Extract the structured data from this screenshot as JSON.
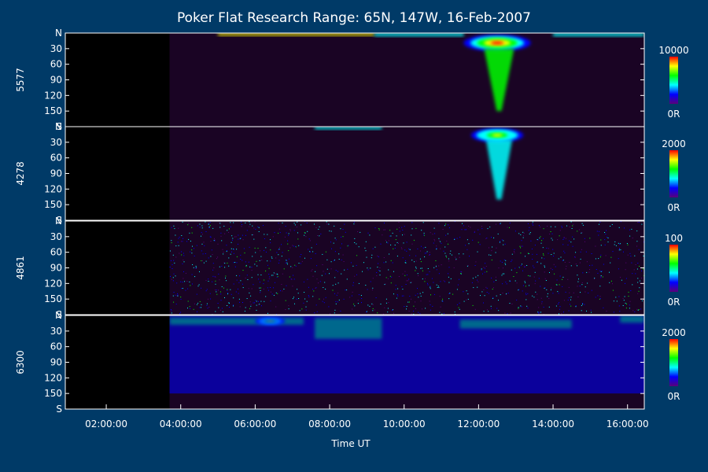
{
  "chart_data": {
    "type": "heatmap",
    "title": "Poker Flat Research Range: 65N, 147W, 16-Feb-2007",
    "xlabel": "Time UT",
    "x_range_hours": [
      0.9,
      16.45
    ],
    "x_ticks": [
      {
        "hour": 2,
        "label": "02:00:00"
      },
      {
        "hour": 4,
        "label": "04:00:00"
      },
      {
        "hour": 6,
        "label": "06:00:00"
      },
      {
        "hour": 8,
        "label": "08:00:00"
      },
      {
        "hour": 10,
        "label": "10:00:00"
      },
      {
        "hour": 12,
        "label": "12:00:00"
      },
      {
        "hour": 14,
        "label": "14:00:00"
      },
      {
        "hour": 16,
        "label": "16:00:00"
      }
    ],
    "y_range": [
      0,
      180
    ],
    "y_ticks": [
      {
        "value": 0,
        "label": "N"
      },
      {
        "value": 30,
        "label": "30"
      },
      {
        "value": 60,
        "label": "60"
      },
      {
        "value": 90,
        "label": "90"
      },
      {
        "value": 120,
        "label": "120"
      },
      {
        "value": 150,
        "label": "150"
      },
      {
        "value": 180,
        "label": "S"
      }
    ],
    "colorbar_colors": [
      "#5a0078",
      "#0000ff",
      "#00ffff",
      "#00ff00",
      "#ffff00",
      "#ff0000"
    ],
    "data_start_hour": 3.7,
    "panels": [
      {
        "name": "5577",
        "colorbar_max": "10000",
        "colorbar_min": "0R",
        "features": [
          {
            "kind": "band",
            "x_start": 5.0,
            "x_end": 9.2,
            "y_start": 0,
            "y_end": 5,
            "intensity": 0.7
          },
          {
            "kind": "band",
            "x_start": 9.2,
            "x_end": 11.6,
            "y_start": 0,
            "y_end": 6,
            "intensity": 0.3
          },
          {
            "kind": "band",
            "x_start": 14.0,
            "x_end": 16.45,
            "y_start": 0,
            "y_end": 6,
            "intensity": 0.4
          },
          {
            "kind": "blob",
            "x_center": 12.5,
            "x_width": 1.8,
            "y_start": 3,
            "y_end": 35,
            "intensity": 1.0
          },
          {
            "kind": "plume",
            "x_center": 12.55,
            "x_width": 0.8,
            "y_start": 30,
            "y_end": 150,
            "intensity": 0.5
          }
        ]
      },
      {
        "name": "4278",
        "colorbar_max": "2000",
        "colorbar_min": "0R",
        "features": [
          {
            "kind": "band",
            "x_start": 7.6,
            "x_end": 9.4,
            "y_start": 0,
            "y_end": 5,
            "intensity": 0.3
          },
          {
            "kind": "blob",
            "x_center": 12.5,
            "x_width": 1.4,
            "y_start": 3,
            "y_end": 30,
            "intensity": 0.75
          },
          {
            "kind": "plume",
            "x_center": 12.55,
            "x_width": 0.7,
            "y_start": 25,
            "y_end": 140,
            "intensity": 0.45
          }
        ]
      },
      {
        "name": "4861",
        "colorbar_max": "100",
        "colorbar_min": "0R",
        "features": [
          {
            "kind": "noise",
            "x_start": 3.7,
            "x_end": 16.45,
            "y_start": 0,
            "y_end": 180,
            "intensity": 0.25
          }
        ]
      },
      {
        "name": "6300",
        "colorbar_max": "2000",
        "colorbar_min": "0R",
        "features": [
          {
            "kind": "band",
            "x_start": 3.7,
            "x_end": 7.3,
            "y_start": 4,
            "y_end": 18,
            "intensity": 0.6
          },
          {
            "kind": "blob",
            "x_center": 6.4,
            "x_width": 0.8,
            "y_start": 4,
            "y_end": 18,
            "intensity": 0.75
          },
          {
            "kind": "band",
            "x_start": 7.6,
            "x_end": 9.4,
            "y_start": 5,
            "y_end": 45,
            "intensity": 0.5
          },
          {
            "kind": "band",
            "x_start": 11.5,
            "x_end": 14.5,
            "y_start": 8,
            "y_end": 25,
            "intensity": 0.5
          },
          {
            "kind": "band",
            "x_start": 15.8,
            "x_end": 16.45,
            "y_start": 0,
            "y_end": 14,
            "intensity": 0.6
          },
          {
            "kind": "band",
            "x_start": 3.7,
            "x_end": 16.45,
            "y_start": 0,
            "y_end": 150,
            "intensity": 0.18
          }
        ]
      }
    ]
  }
}
